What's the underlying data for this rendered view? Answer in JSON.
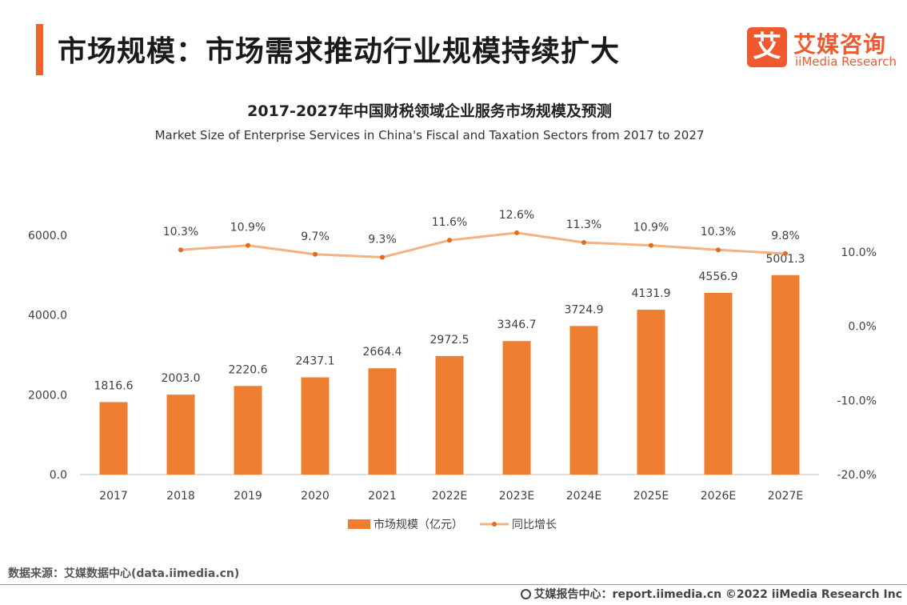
{
  "header": {
    "title": "市场规模：市场需求推动行业规模持续扩大",
    "logo_mark": "艾",
    "logo_cn": "艾媒咨询",
    "logo_en": "iiMedia Research"
  },
  "colors": {
    "accent": "#f2622c",
    "bar": "#ed7d31",
    "line": "#f4b183",
    "marker": "#e06c1f"
  },
  "chart_data": {
    "type": "bar",
    "title": "2017-2027年中国财税领域企业服务市场规模及预测",
    "subtitle": "Market Size of Enterprise Services in China's Fiscal and Taxation Sectors from 2017 to 2027",
    "categories": [
      "2017",
      "2018",
      "2019",
      "2020",
      "2021",
      "2022E",
      "2023E",
      "2024E",
      "2025E",
      "2026E",
      "2027E"
    ],
    "series": [
      {
        "name": "市场规模（亿元）",
        "type": "bar",
        "axis": "left",
        "values": [
          1816.6,
          2003.0,
          2220.6,
          2437.1,
          2664.4,
          2972.5,
          3346.7,
          3724.9,
          4131.9,
          4556.9,
          5001.3
        ],
        "labels": [
          "1816.6",
          "2003.0",
          "2220.6",
          "2437.1",
          "2664.4",
          "2972.5",
          "3346.7",
          "3724.9",
          "4131.9",
          "4556.9",
          "5001.3"
        ]
      },
      {
        "name": "同比增长",
        "type": "line",
        "axis": "right",
        "values": [
          null,
          10.3,
          10.9,
          9.7,
          9.3,
          11.6,
          12.6,
          11.3,
          10.9,
          10.3,
          9.8
        ],
        "labels": [
          "",
          "10.3%",
          "10.9%",
          "9.7%",
          "9.3%",
          "11.6%",
          "12.6%",
          "11.3%",
          "10.9%",
          "10.3%",
          "9.8%"
        ]
      }
    ],
    "y_left": {
      "ylim": [
        0,
        6000
      ],
      "ticks": [
        0,
        2000,
        4000,
        6000
      ],
      "tick_labels": [
        "0.0",
        "2000.0",
        "4000.0",
        "6000.0"
      ]
    },
    "y_right": {
      "ylim": [
        -20,
        10
      ],
      "ticks": [
        -20,
        -10,
        0,
        10
      ],
      "tick_labels": [
        "-20.0%",
        "-10.0%",
        "0.0%",
        "10.0%"
      ]
    },
    "grid": false,
    "legend_position": "bottom-center"
  },
  "footer": {
    "source": "数据来源：艾媒数据中心(data.iimedia.cn)",
    "right": "艾媒报告中心：report.iimedia.cn ©2022  iiMedia Research  Inc"
  }
}
